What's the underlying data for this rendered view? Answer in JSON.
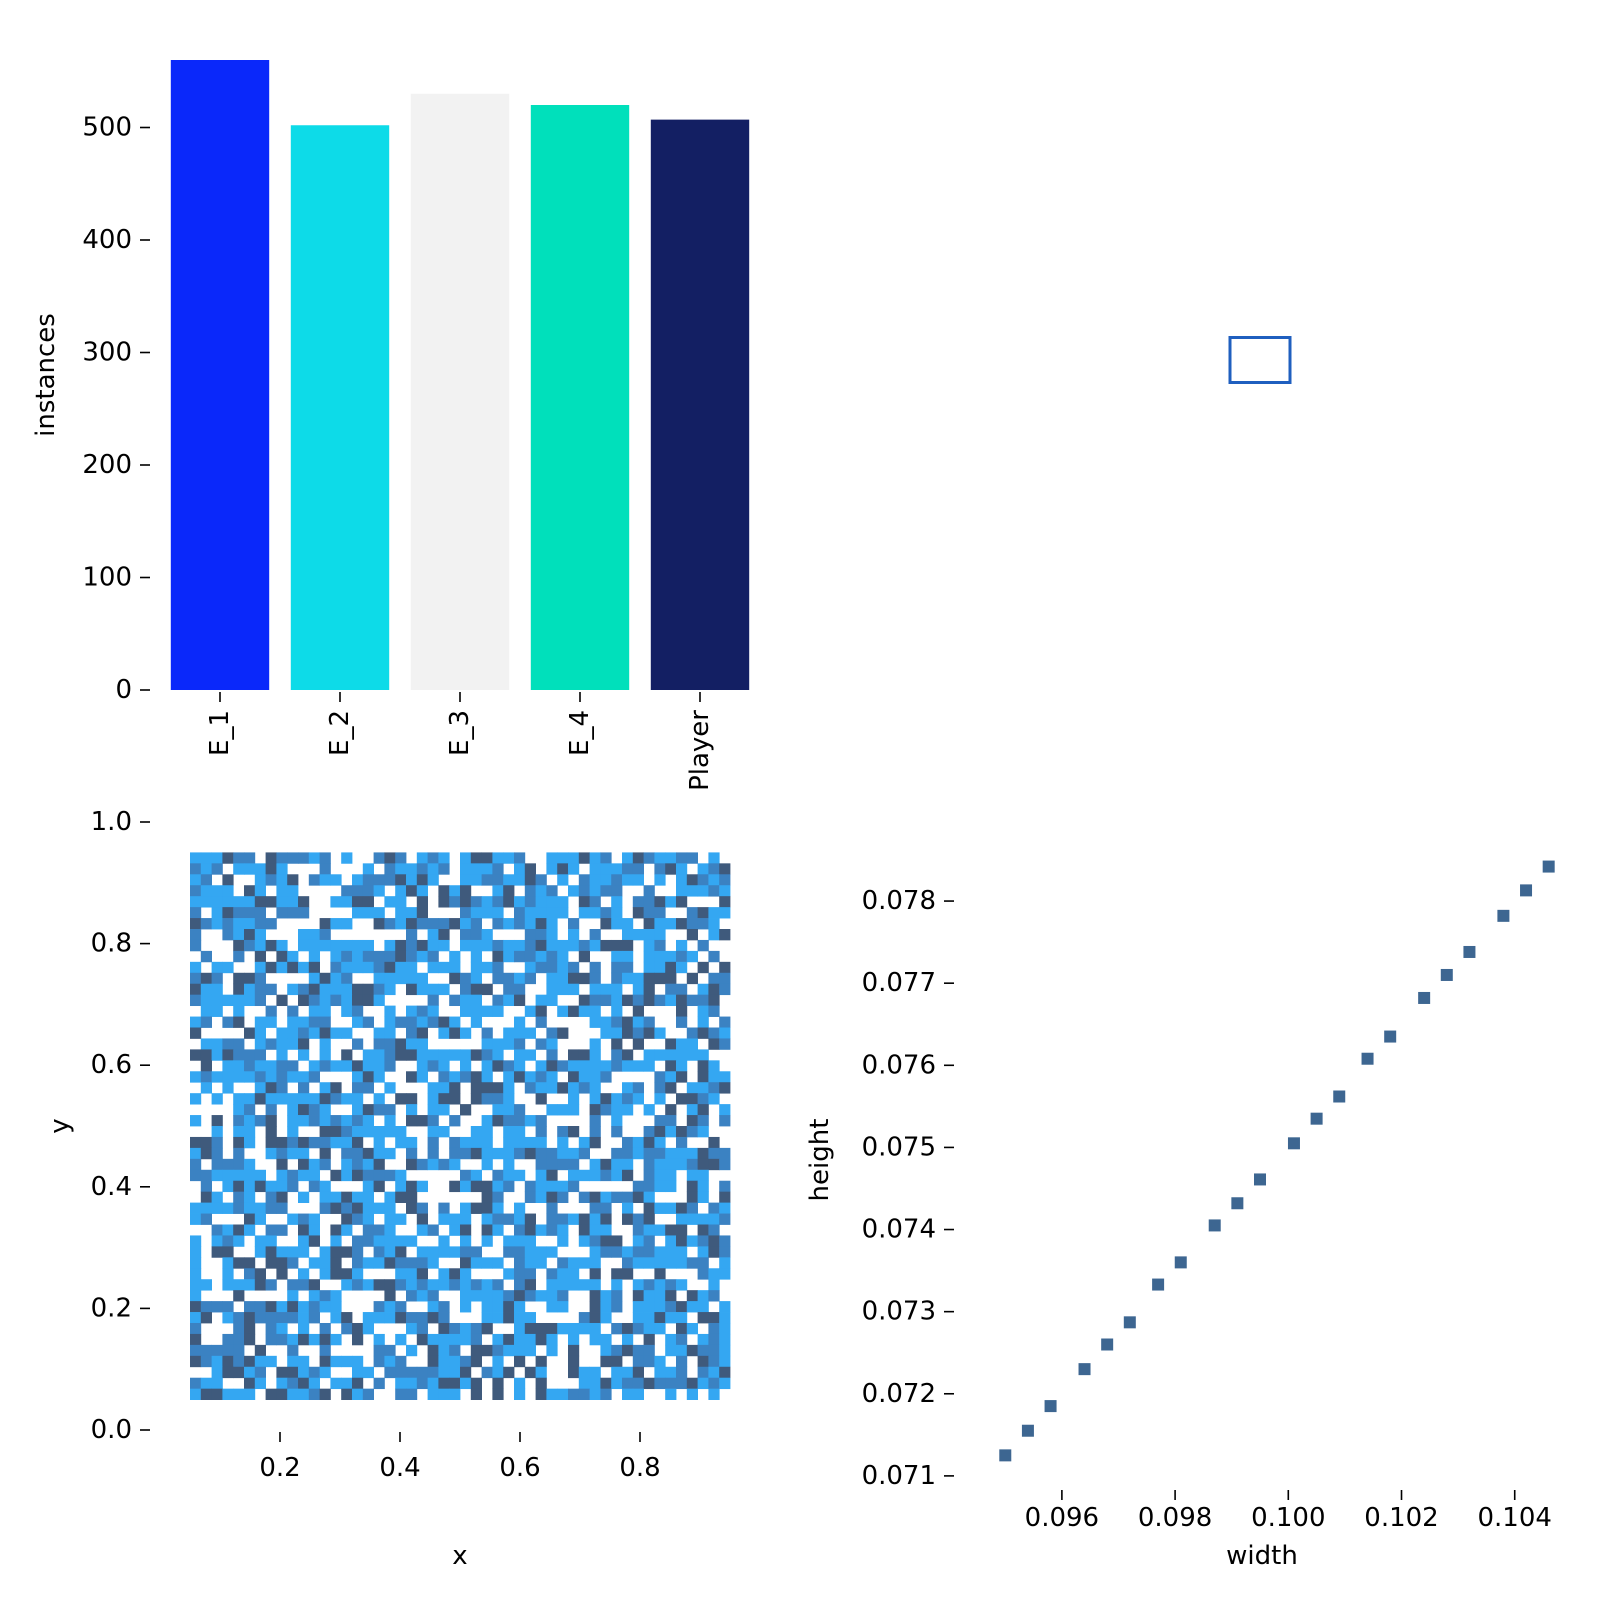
{
  "chart_data": [
    {
      "type": "bar",
      "ylabel": "instances",
      "xlabel": "",
      "ylim": [
        0,
        560
      ],
      "yticks": [
        0,
        100,
        200,
        300,
        400,
        500
      ],
      "categories": [
        "E_1",
        "E_2",
        "E_3",
        "E_4",
        "Player"
      ],
      "values": [
        560,
        502,
        530,
        520,
        507
      ],
      "colors": [
        "#0a28fa",
        "#0ddbe8",
        "#f2f2f2",
        "#00e0bb",
        "#131f63"
      ],
      "grid": false
    },
    {
      "type": "box",
      "description_shape": "single normalized bounding box outline",
      "color": "#1f5fbf",
      "box": {
        "cx": 0.5,
        "cy": 0.5,
        "width": 0.1,
        "height": 0.075
      }
    },
    {
      "type": "heatmap",
      "xlabel": "x",
      "ylabel": "y",
      "xlim": [
        0.0,
        1.0
      ],
      "ylim": [
        0.0,
        1.0
      ],
      "xticks": [
        "0.2",
        "0.4",
        "0.6",
        "0.8"
      ],
      "yticks": [
        "0.0",
        "0.2",
        "0.4",
        "0.6",
        "0.8",
        "1.0"
      ],
      "data_extent": {
        "x": [
          0.05,
          0.95
        ],
        "y": [
          0.05,
          0.95
        ]
      },
      "bins": 50,
      "palette": [
        "#ffffff",
        "#34a7f2",
        "#3b82c2",
        "#3f5a7c"
      ],
      "grid": false
    },
    {
      "type": "scatter",
      "xlabel": "width",
      "ylabel": "height",
      "xlim": [
        0.0942,
        0.1048
      ],
      "ylim": [
        0.07095,
        0.0785
      ],
      "xticks": [
        "0.096",
        "0.098",
        "0.100",
        "0.102",
        "0.104"
      ],
      "yticks": [
        "0.071",
        "0.072",
        "0.073",
        "0.074",
        "0.075",
        "0.076",
        "0.077",
        "0.078"
      ],
      "marker_color": "#3d6691",
      "x": [
        0.095,
        0.0954,
        0.0958,
        0.0964,
        0.0968,
        0.0972,
        0.0977,
        0.0981,
        0.0987,
        0.0991,
        0.0995,
        0.1001,
        0.1005,
        0.1009,
        0.1014,
        0.1018,
        0.1024,
        0.1028,
        0.1032,
        0.1038,
        0.1042,
        0.1046
      ],
      "y": [
        0.07125,
        0.07155,
        0.07185,
        0.0723,
        0.0726,
        0.07287,
        0.07333,
        0.0736,
        0.07405,
        0.07432,
        0.07461,
        0.07505,
        0.07535,
        0.07562,
        0.07608,
        0.07635,
        0.07682,
        0.0771,
        0.07738,
        0.07782,
        0.07813,
        0.07842
      ],
      "grid": false
    }
  ]
}
